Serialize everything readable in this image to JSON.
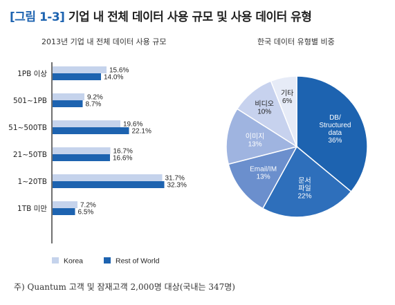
{
  "figure": {
    "number": "[그림 1-3]",
    "title": "기업 내 전체 데이터 사용 규모 및 사용 데이터 유형"
  },
  "footnote": "주) Quantum 고객 및 잠재고객 2,000명 대상(국내는 347명)",
  "chart_data": [
    {
      "type": "bar",
      "orientation": "horizontal",
      "title": "2013년 기업 내 전체 데이터 사용 규모",
      "categories": [
        "1PB 이상",
        "501~1PB",
        "51~500TB",
        "21~50TB",
        "1~20TB",
        "1TB 미만"
      ],
      "series": [
        {
          "name": "Korea",
          "values": [
            15.6,
            9.2,
            19.6,
            16.7,
            31.7,
            7.2
          ],
          "labels": [
            "15.6%",
            "9.2%",
            "19.6%",
            "16.7%",
            "31.7%",
            "7.2%"
          ],
          "color": "#c5d3ec"
        },
        {
          "name": "Rest of World",
          "values": [
            14.0,
            8.7,
            22.1,
            16.6,
            32.3,
            6.5
          ],
          "labels": [
            "14.0%",
            "8.7%",
            "22.1%",
            "16.6%",
            "32.3%",
            "6.5%"
          ],
          "color": "#1d63b0"
        }
      ],
      "xlim": [
        0,
        40
      ],
      "legend_position": "bottom"
    },
    {
      "type": "pie",
      "title": "한국 데이터 유형별 비중",
      "slices": [
        {
          "label": "DB/ Structured data",
          "lines": [
            "DB/",
            "Structured",
            "data"
          ],
          "pct_label": "36%",
          "value": 36,
          "color": "#1d63b0",
          "text_color": "#ffffff"
        },
        {
          "label": "문서 파일",
          "lines": [
            "문서",
            "파일"
          ],
          "pct_label": "22%",
          "value": 22,
          "color": "#2e6fbb",
          "text_color": "#ffffff"
        },
        {
          "label": "Email/IM",
          "lines": [
            "Email/IM"
          ],
          "pct_label": "13%",
          "value": 13,
          "color": "#6b8fcd",
          "text_color": "#ffffff"
        },
        {
          "label": "이미지",
          "lines": [
            "이미지"
          ],
          "pct_label": "13%",
          "value": 13,
          "color": "#9fb4e0",
          "text_color": "#ffffff"
        },
        {
          "label": "비디오",
          "lines": [
            "비디오"
          ],
          "pct_label": "10%",
          "value": 10,
          "color": "#c7d2ee",
          "text_color": "#222222"
        },
        {
          "label": "기타",
          "lines": [
            "기타"
          ],
          "pct_label": "6%",
          "value": 6,
          "color": "#e6ebf7",
          "text_color": "#222222"
        }
      ]
    }
  ]
}
